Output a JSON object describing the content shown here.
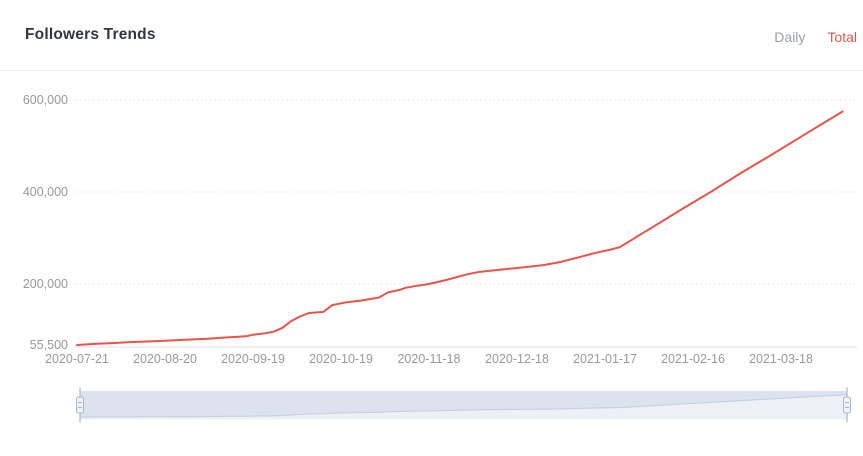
{
  "header": {
    "title": "Followers Trends",
    "tabs": [
      {
        "label": "Daily",
        "active": false
      },
      {
        "label": "Total",
        "active": true
      }
    ]
  },
  "colors": {
    "accent": "#e8544a",
    "line": "#e8544a",
    "tab_inactive": "#9aa0a6",
    "title_text": "#33373c",
    "tick_text": "#999999",
    "grid_line": "#e3e3e3",
    "axis_line": "#e0e0e0",
    "slider_track": "#dce3ee",
    "slider_shadow_fill": "#edf1f7",
    "slider_shadow_line": "#c8d1de",
    "slider_handle_fill": "#eef2f7",
    "slider_handle_border": "#a9b6c9"
  },
  "chart_data": {
    "type": "line",
    "title": "Followers Trends",
    "legend": "none",
    "grid": "horizontal-dotted",
    "x_axis": {
      "type": "date",
      "ticks": [
        "2020-07-21",
        "2020-08-20",
        "2020-09-19",
        "2020-10-19",
        "2020-11-18",
        "2020-12-18",
        "2021-01-17",
        "2021-02-16",
        "2021-03-18"
      ],
      "range": [
        "2020-07-21",
        "2021-04-08"
      ]
    },
    "y_axis": {
      "min": 55500,
      "max": 600000,
      "ticks": [
        {
          "value": 55500,
          "label": "55,500"
        },
        {
          "value": 200000,
          "label": "200,000"
        },
        {
          "value": 400000,
          "label": "400,000"
        },
        {
          "value": 600000,
          "label": "600,000"
        }
      ]
    },
    "series": [
      {
        "name": "Total Followers",
        "color": "#e8544a",
        "points": [
          [
            "2020-07-21",
            55500
          ],
          [
            "2020-07-27",
            58000
          ],
          [
            "2020-08-02",
            60000
          ],
          [
            "2020-08-09",
            62500
          ],
          [
            "2020-08-15",
            64000
          ],
          [
            "2020-08-20",
            65500
          ],
          [
            "2020-08-27",
            68000
          ],
          [
            "2020-09-03",
            70000
          ],
          [
            "2020-09-09",
            73000
          ],
          [
            "2020-09-14",
            75000
          ],
          [
            "2020-09-17",
            76500
          ],
          [
            "2020-09-19",
            80000
          ],
          [
            "2020-09-23",
            83000
          ],
          [
            "2020-09-26",
            87000
          ],
          [
            "2020-09-29",
            96000
          ],
          [
            "2020-10-02",
            112000
          ],
          [
            "2020-10-05",
            123000
          ],
          [
            "2020-10-08",
            131000
          ],
          [
            "2020-10-13",
            134000
          ],
          [
            "2020-10-16",
            150000
          ],
          [
            "2020-10-21",
            157000
          ],
          [
            "2020-10-26",
            161000
          ],
          [
            "2020-11-01",
            168000
          ],
          [
            "2020-11-04",
            180000
          ],
          [
            "2020-11-08",
            186000
          ],
          [
            "2020-11-10",
            191000
          ],
          [
            "2020-11-14",
            196000
          ],
          [
            "2020-11-18",
            200000
          ],
          [
            "2020-11-24",
            209000
          ],
          [
            "2020-12-01",
            221000
          ],
          [
            "2020-12-05",
            226000
          ],
          [
            "2020-12-12",
            231000
          ],
          [
            "2020-12-20",
            236000
          ],
          [
            "2020-12-27",
            241000
          ],
          [
            "2021-01-02",
            248000
          ],
          [
            "2021-01-08",
            258000
          ],
          [
            "2021-01-14",
            268000
          ],
          [
            "2021-01-19",
            275000
          ],
          [
            "2021-01-22",
            280000
          ],
          [
            "2021-02-01",
            319000
          ],
          [
            "2021-02-12",
            362000
          ],
          [
            "2021-02-22",
            400000
          ],
          [
            "2021-03-04",
            440000
          ],
          [
            "2021-03-14",
            478000
          ],
          [
            "2021-03-24",
            517000
          ],
          [
            "2021-04-02",
            552000
          ],
          [
            "2021-04-08",
            575000
          ]
        ]
      }
    ],
    "data_zoom_slider": {
      "present": true,
      "start_percent": 0,
      "end_percent": 100
    }
  }
}
